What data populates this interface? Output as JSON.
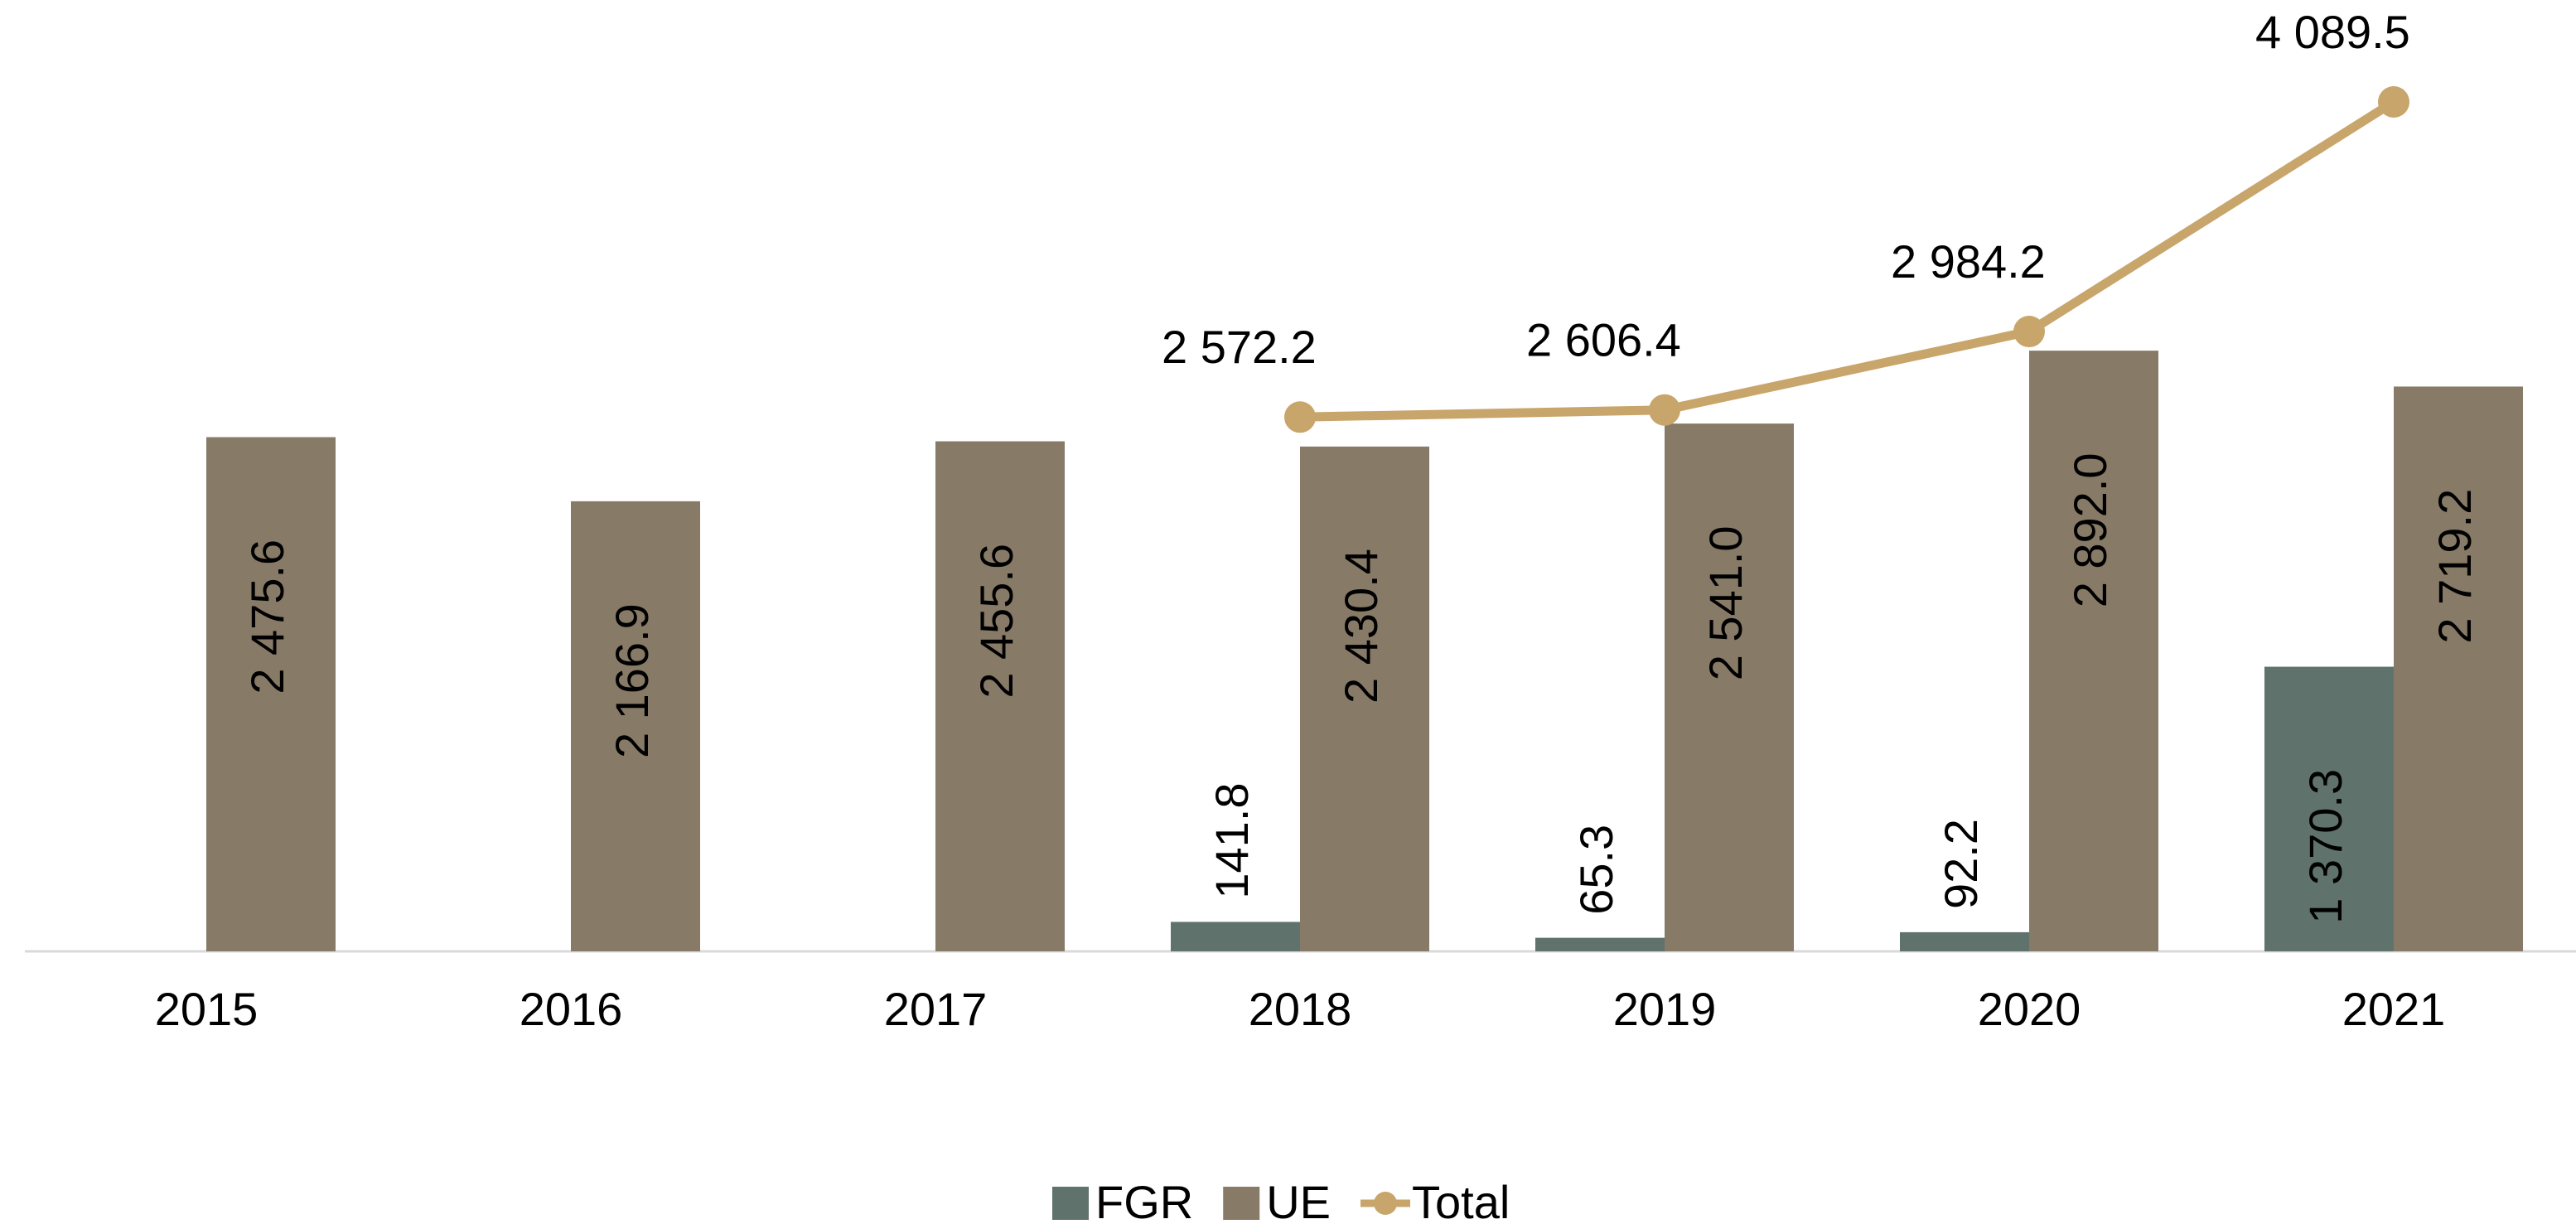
{
  "chart_data": {
    "type": "bar",
    "categories": [
      "2015",
      "2016",
      "2017",
      "2018",
      "2019",
      "2020",
      "2021"
    ],
    "series": [
      {
        "name": "FGR",
        "type": "bar",
        "color": "#5f726b",
        "values": [
          null,
          null,
          null,
          141.8,
          65.3,
          92.2,
          1370.3
        ],
        "value_labels": [
          null,
          null,
          null,
          "141.8",
          "65.3",
          "92.2",
          "1 370.3"
        ]
      },
      {
        "name": "UE",
        "type": "bar",
        "color": "#877a66",
        "values": [
          2475.6,
          2166.9,
          2455.6,
          2430.4,
          2541.0,
          2892.0,
          2719.2
        ],
        "value_labels": [
          "2 475.6",
          "2 166.9",
          "2 455.6",
          "2 430.4",
          "2 541.0",
          "2 892.0",
          "2 719.2"
        ]
      },
      {
        "name": "Total",
        "type": "line",
        "color": "#c8a56a",
        "values": [
          null,
          null,
          null,
          2572.2,
          2606.4,
          2984.2,
          4089.5
        ],
        "value_labels": [
          null,
          null,
          null,
          "2 572.2",
          "2 606.4",
          "2 984.2",
          "4 089.5"
        ]
      }
    ],
    "legend": "bottom"
  }
}
